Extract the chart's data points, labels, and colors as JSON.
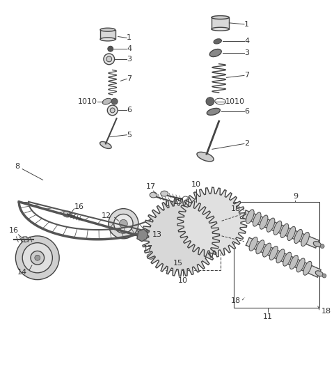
{
  "bg_color": "#ffffff",
  "line_color": "#444444",
  "fig_width": 4.8,
  "fig_height": 5.63,
  "dpi": 100,
  "gray1": "#cccccc",
  "gray2": "#aaaaaa",
  "gray3": "#888888",
  "gray4": "#666666",
  "gray5": "#e8e8e8"
}
